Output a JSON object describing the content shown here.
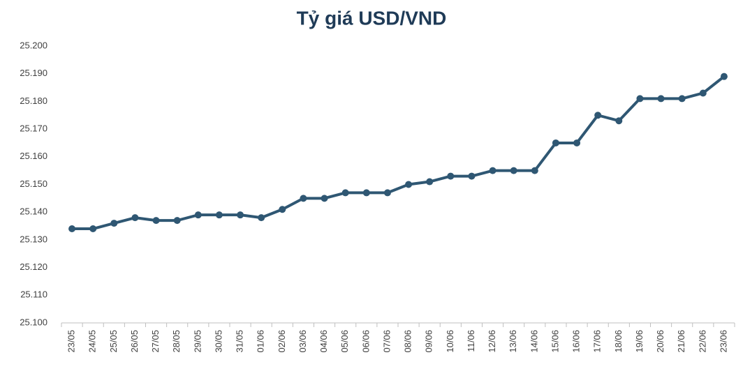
{
  "chart_data": {
    "type": "line",
    "title": "Tỷ giá USD/VND",
    "categories": [
      "23/05",
      "24/05",
      "25/05",
      "26/05",
      "27/05",
      "28/05",
      "29/05",
      "30/05",
      "31/05",
      "01/06",
      "02/06",
      "03/06",
      "04/06",
      "05/06",
      "06/06",
      "07/06",
      "08/06",
      "09/06",
      "10/06",
      "11/06",
      "12/06",
      "13/06",
      "14/06",
      "15/06",
      "16/06",
      "17/06",
      "18/06",
      "19/06",
      "20/06",
      "21/06",
      "22/06",
      "23/06"
    ],
    "values": [
      25134,
      25134,
      25136,
      25138,
      25137,
      25137,
      25139,
      25139,
      25139,
      25138,
      25141,
      25145,
      25145,
      25147,
      25147,
      25147,
      25150,
      25151,
      25153,
      25153,
      25155,
      25155,
      25155,
      25165,
      25165,
      25175,
      25173,
      25181,
      25181,
      25181,
      25183,
      25189
    ],
    "color": "#2f5773",
    "ylim": [
      25100,
      25200
    ],
    "yticks": [
      {
        "value": 25100,
        "label": "25.100"
      },
      {
        "value": 25110,
        "label": "25.110"
      },
      {
        "value": 25120,
        "label": "25.120"
      },
      {
        "value": 25130,
        "label": "25.130"
      },
      {
        "value": 25140,
        "label": "25.140"
      },
      {
        "value": 25150,
        "label": "25.150"
      },
      {
        "value": 25160,
        "label": "25.160"
      },
      {
        "value": 25170,
        "label": "25.170"
      },
      {
        "value": 25180,
        "label": "25.180"
      },
      {
        "value": 25190,
        "label": "25.190"
      },
      {
        "value": 25200,
        "label": "25.200"
      }
    ],
    "grid": false
  }
}
